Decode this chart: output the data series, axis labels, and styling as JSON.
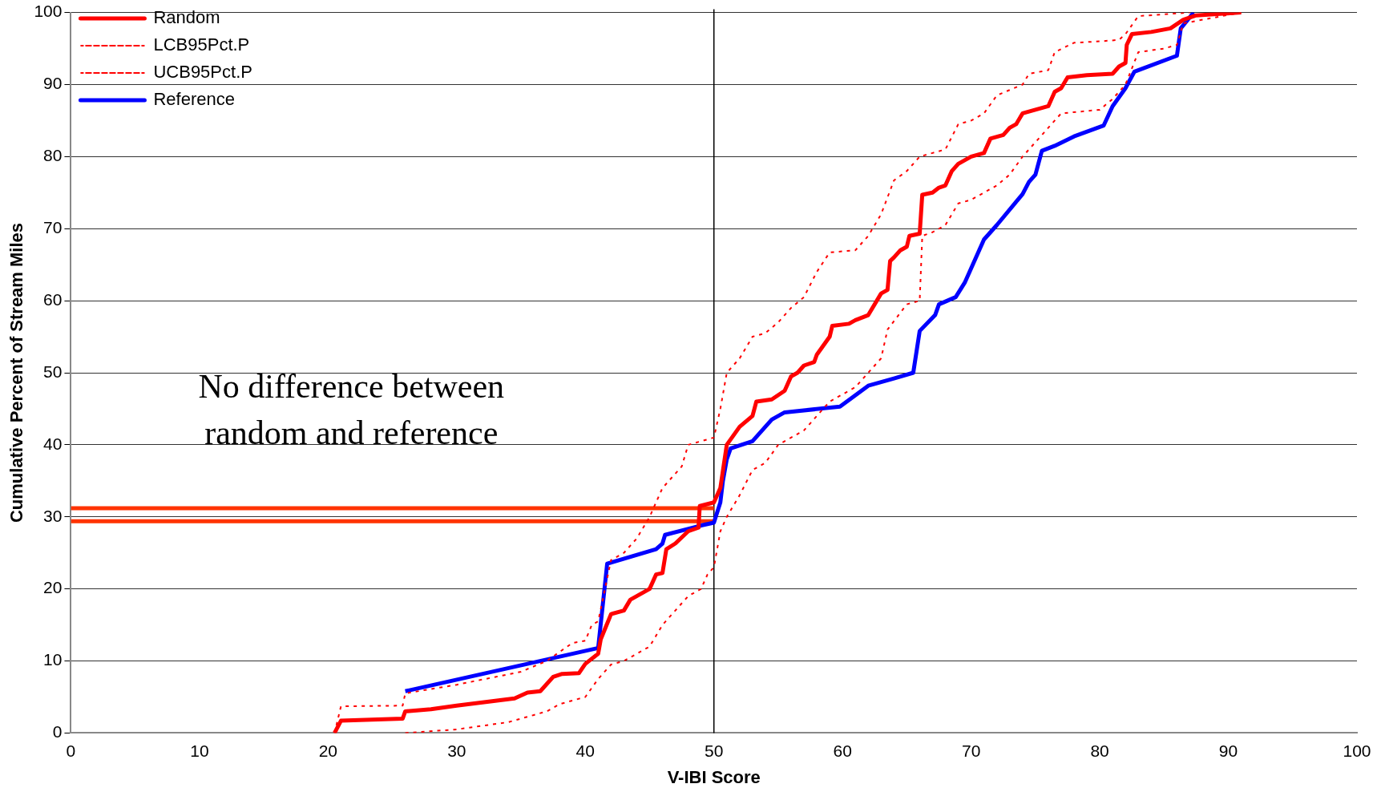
{
  "chart_data": {
    "type": "line",
    "xlabel": "V-IBI Score",
    "ylabel": "Cumulative Percent of Stream Miles",
    "xlim": [
      0,
      100
    ],
    "xticks": [
      0,
      10,
      20,
      30,
      40,
      50,
      60,
      70,
      80,
      90,
      100
    ],
    "ylim": [
      0,
      100
    ],
    "yticks": [
      0,
      10,
      20,
      30,
      40,
      50,
      60,
      70,
      80,
      90,
      100
    ],
    "grid": "y",
    "legend": "top left",
    "marker": "none",
    "annotations": [
      "No difference between\nrandom and reference"
    ],
    "ref_lines": [
      {
        "axis": "x",
        "value": 50,
        "color": "#000000"
      }
    ],
    "series": [
      {
        "name": "Random",
        "color": "#ff0000",
        "line_style": "solid",
        "x": [
          20.5,
          21,
          25.8,
          26,
          28,
          30,
          34.5,
          35.5,
          36.5,
          37.5,
          38.2,
          39.5,
          40,
          41,
          41.2,
          42,
          43,
          43.5,
          45,
          45.5,
          46,
          46.3,
          47,
          48,
          48.8,
          48.9,
          50,
          50.5,
          51,
          52,
          53,
          53.3,
          54.5,
          55.5,
          56,
          56.5,
          57,
          57.8,
          58,
          59,
          59.2,
          60.5,
          61,
          62,
          63,
          63.5,
          63.7,
          64,
          64.5,
          65,
          65.2,
          66,
          66.2,
          67,
          67.5,
          68,
          68.5,
          69,
          70,
          71,
          71.5,
          72.5,
          73,
          73.5,
          74,
          75,
          76,
          76.5,
          77,
          77.5,
          79,
          81,
          81.5,
          82,
          82.1,
          82.5,
          84,
          85.5,
          86.5,
          87.5,
          91
        ],
        "values": [
          0,
          1.7,
          2,
          3,
          3.3,
          3.8,
          4.8,
          5.6,
          5.8,
          7.8,
          8.2,
          8.3,
          9.6,
          11,
          13,
          16.5,
          17,
          18.5,
          20,
          22,
          22.2,
          25.5,
          26.3,
          28,
          28.5,
          31.5,
          32,
          34,
          40,
          42.5,
          44,
          46,
          46.3,
          47.5,
          49.5,
          50,
          51,
          51.5,
          52.5,
          55,
          56.5,
          56.8,
          57.3,
          58,
          61,
          61.5,
          65.5,
          66,
          67,
          67.5,
          69,
          69.3,
          74.7,
          75,
          75.7,
          76,
          78,
          79,
          80,
          80.5,
          82.5,
          83,
          84,
          84.5,
          86,
          86.5,
          87,
          89,
          89.5,
          91,
          91.3,
          91.5,
          92.5,
          93,
          95.5,
          97,
          97.3,
          97.8,
          99,
          99.6,
          100
        ]
      },
      {
        "name": "LCB95Pct.P",
        "color": "#ff0000",
        "line_style": "dotted",
        "x": [
          26,
          30,
          34,
          36,
          37,
          38,
          39,
          40,
          41,
          42,
          43,
          44,
          45,
          46,
          47,
          48,
          49,
          49.5,
          50,
          50.5,
          51,
          52,
          53,
          54,
          55,
          56,
          57,
          58,
          59,
          60,
          61,
          62,
          63,
          63.5,
          65,
          66,
          66.2,
          67,
          68,
          69,
          70,
          71,
          72,
          73,
          74,
          75,
          76,
          77,
          80,
          81,
          82,
          83,
          85,
          86,
          86.5,
          88,
          91
        ],
        "values": [
          0,
          0.5,
          1.5,
          2.5,
          3,
          4,
          4.5,
          5,
          7.5,
          9.5,
          10,
          11,
          12,
          15,
          17,
          19,
          20,
          22,
          23,
          28,
          30,
          33,
          36.5,
          37.5,
          40,
          41,
          42,
          44,
          46,
          47,
          48,
          50,
          52,
          56,
          59.5,
          60,
          69,
          69.5,
          70.5,
          73.5,
          74,
          75,
          76,
          77.5,
          80,
          82,
          84,
          86,
          86.5,
          88,
          90,
          94.5,
          95,
          95.5,
          98.5,
          99,
          100
        ]
      },
      {
        "name": "UCB95Pct.P",
        "color": "#ff0000",
        "line_style": "dotted",
        "x": [
          20.5,
          21,
          25.8,
          26,
          30,
          35,
          37,
          39,
          40,
          40.5,
          41,
          42,
          43,
          44,
          45,
          46,
          47.5,
          48,
          49,
          50,
          50.5,
          51,
          52,
          53,
          54,
          55,
          56,
          57,
          58,
          59,
          61,
          62,
          63,
          64,
          65,
          66,
          67,
          68,
          69,
          70,
          71,
          72,
          74,
          74.5,
          76,
          76.5,
          78,
          80,
          81.5,
          82,
          83,
          87
        ],
        "values": [
          0,
          3.7,
          3.8,
          5.5,
          6.7,
          8.5,
          10,
          12.5,
          12.8,
          15,
          15.5,
          24,
          25,
          27,
          30,
          34,
          37,
          40,
          40.5,
          41,
          45,
          50,
          52,
          55,
          55.5,
          57,
          59,
          60.5,
          64,
          66.7,
          67,
          69,
          72,
          76.7,
          78,
          80,
          80.5,
          81,
          84.5,
          85,
          86,
          88.5,
          90,
          91.5,
          92,
          94.5,
          95.8,
          96,
          96.2,
          97,
          99.5,
          100
        ]
      },
      {
        "name": "Reference",
        "color": "#0000ff",
        "line_style": "solid",
        "x": [
          26,
          41,
          41.7,
          45.5,
          46,
          46.2,
          49,
          50,
          50.5,
          50.7,
          51,
          51.3,
          53,
          54.5,
          55.5,
          59.8,
          62,
          64,
          65.5,
          66,
          67.2,
          67.5,
          68.8,
          69.5,
          70.5,
          71,
          72,
          74,
          74.5,
          75,
          75.5,
          76.5,
          78,
          80.3,
          81,
          82,
          82.7,
          86,
          86.3,
          87.3
        ],
        "values": [
          5.8,
          11.8,
          23.5,
          25.5,
          26.3,
          27.5,
          28.8,
          29.2,
          32,
          35,
          38,
          39.5,
          40.5,
          43.5,
          44.5,
          45.3,
          48.2,
          49.2,
          50,
          55.8,
          58,
          59.5,
          60.5,
          62.5,
          66.5,
          68.5,
          70.5,
          74.8,
          76.5,
          77.5,
          80.8,
          81.5,
          82.8,
          84.3,
          87,
          89.5,
          91.8,
          94,
          97.8,
          100
        ]
      },
      {
        "color": "#ff3300",
        "line_style": "solid",
        "x": [
          0,
          50
        ],
        "values": [
          31.2,
          31.2
        ]
      },
      {
        "color": "#ff3300",
        "line_style": "solid",
        "x": [
          0,
          50
        ],
        "values": [
          29.4,
          29.4
        ]
      }
    ]
  }
}
